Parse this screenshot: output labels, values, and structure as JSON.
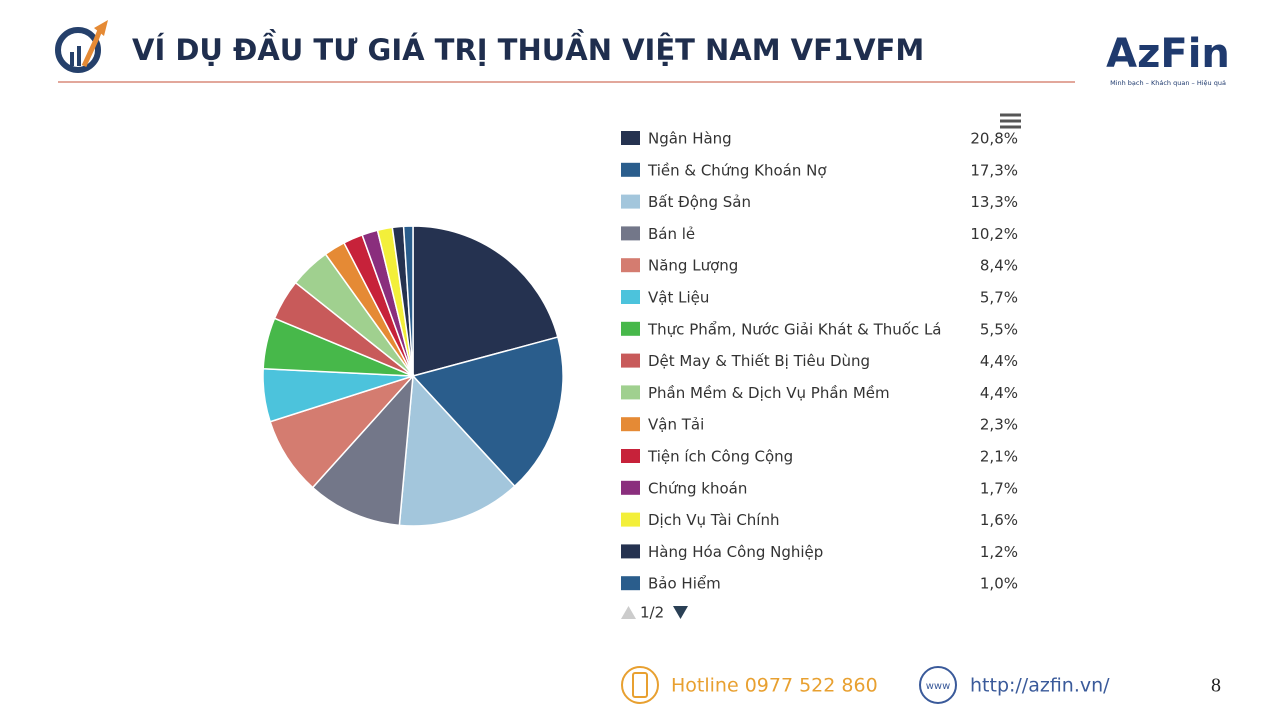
{
  "header": {
    "title": "VÍ DỤ ĐẦU TƯ GIÁ TRỊ THUẦN VIỆT NAM VF1VFM"
  },
  "logo": {
    "name": "AzFin",
    "tagline": "Minh bạch – Khách quan – Hiệu quả"
  },
  "chart_data": {
    "type": "pie",
    "categories": [
      "Ngân Hàng",
      "Tiền & Chứng Khoán Nợ",
      "Bất Động Sản",
      "Bán lẻ",
      "Năng Lượng",
      "Vật Liệu",
      "Thực Phẩm, Nước Giải Khát & Thuốc Lá",
      "Dệt May & Thiết Bị Tiêu Dùng",
      "Phần Mềm & Dịch Vụ Phần Mềm",
      "Vận Tải",
      "Tiện ích Công Cộng",
      "Chứng khoán",
      "Dịch Vụ Tài Chính",
      "Hàng Hóa Công Nghiệp",
      "Bảo Hiểm"
    ],
    "values": [
      20.8,
      17.3,
      13.3,
      10.2,
      8.4,
      5.7,
      5.5,
      4.4,
      4.4,
      2.3,
      2.1,
      1.7,
      1.6,
      1.2,
      1.0
    ],
    "value_labels": [
      "20,8%",
      "17,3%",
      "13,3%",
      "10,2%",
      "8,4%",
      "5,7%",
      "5,5%",
      "4,4%",
      "4,4%",
      "2,3%",
      "2,1%",
      "1,7%",
      "1,6%",
      "1,2%",
      "1,0%"
    ],
    "colors": [
      "#253250",
      "#2a5d8c",
      "#a3c6dc",
      "#737789",
      "#d47c70",
      "#4cc3dc",
      "#47b84a",
      "#c85a5a",
      "#a0d08f",
      "#e58a35",
      "#c7223a",
      "#8a2e7d",
      "#f3ef3a",
      "#253250",
      "#2a5d8c"
    ],
    "legend_page": "1/2"
  },
  "footer": {
    "hotline": "Hotline 0977 522 860",
    "www_icon": "www",
    "website": "http://azfin.vn/",
    "page_number": "8"
  }
}
